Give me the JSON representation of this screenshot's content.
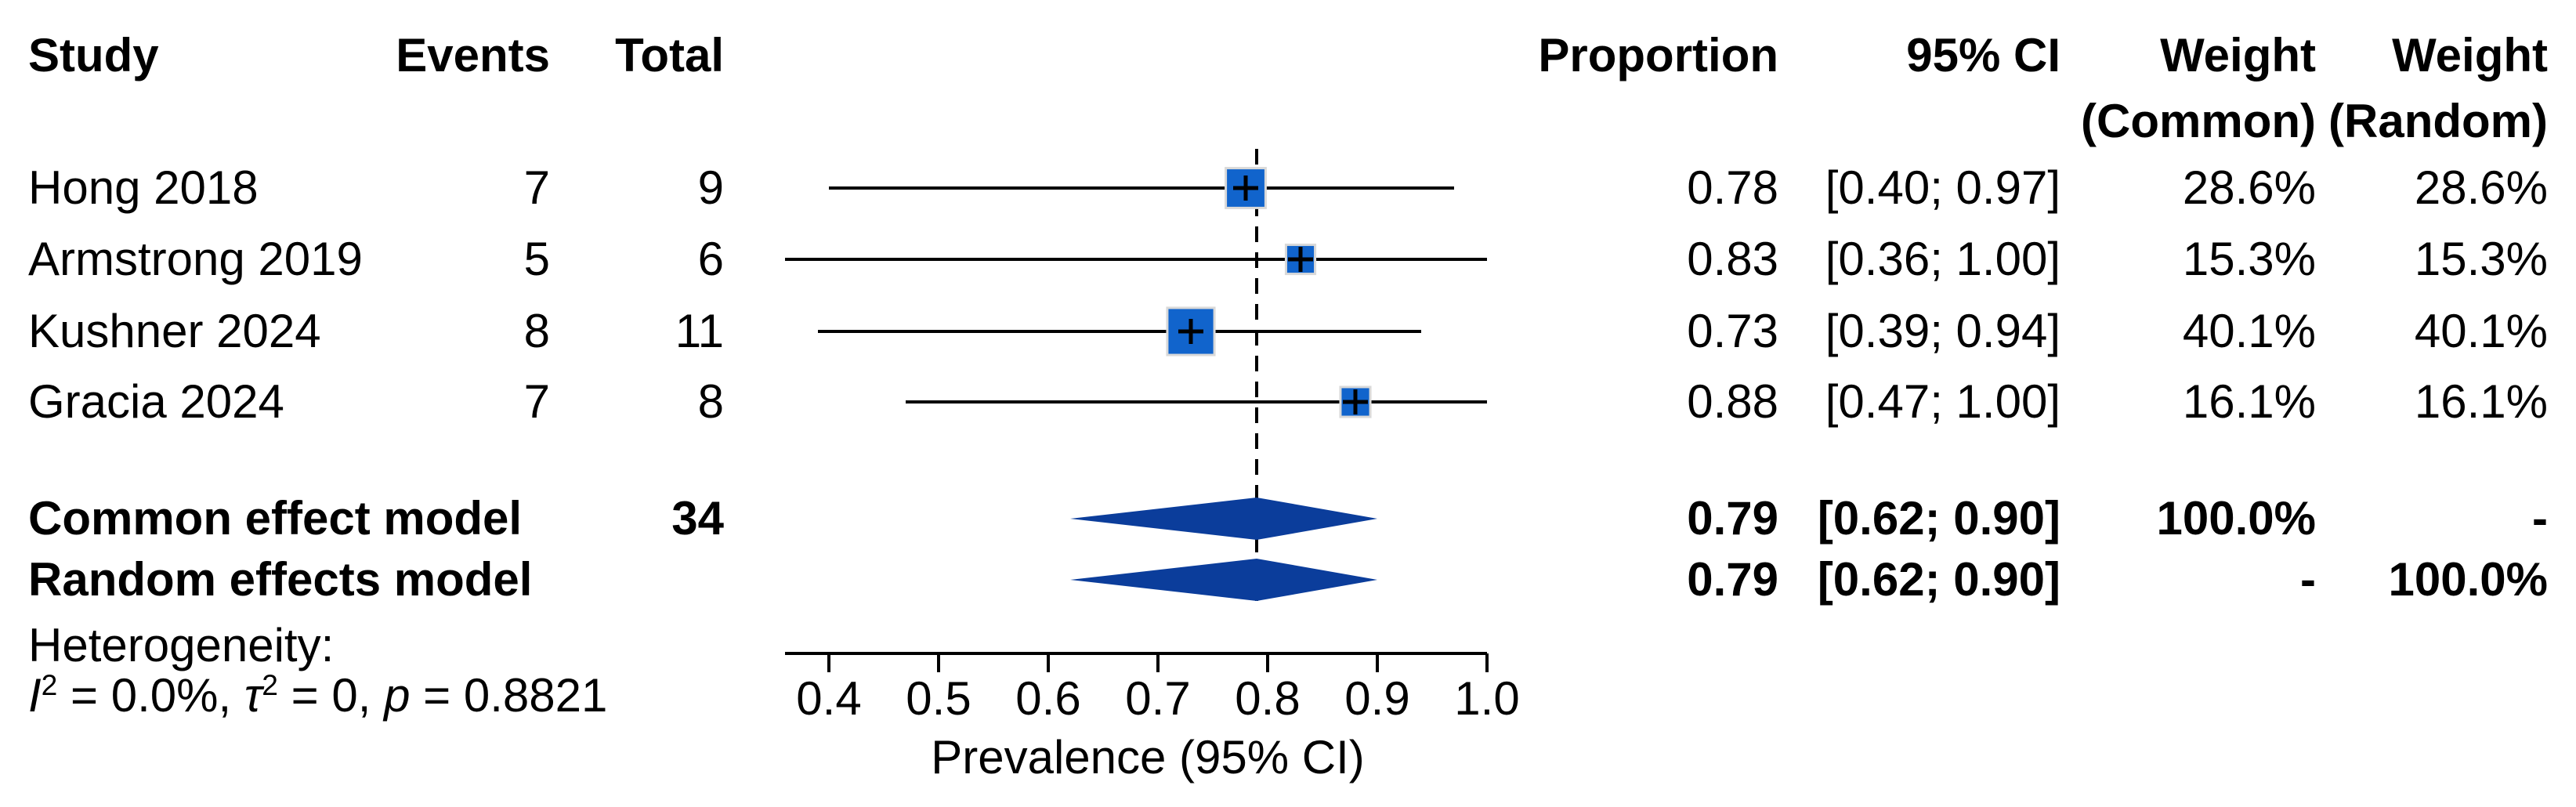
{
  "table": {
    "headers": {
      "study": "Study",
      "events": "Events",
      "total": "Total",
      "proportion": "Proportion",
      "ci": "95% CI",
      "weight_common_line1": "Weight",
      "weight_common_line2": "(Common)",
      "weight_random_line1": "Weight",
      "weight_random_line2": "(Random)"
    },
    "rows": [
      {
        "study": "Hong 2018",
        "events": "7",
        "total": "9",
        "proportion": "0.78",
        "ci": "[0.40; 0.97]",
        "wc": "28.6%",
        "wr": "28.6%"
      },
      {
        "study": "Armstrong 2019",
        "events": "5",
        "total": "6",
        "proportion": "0.83",
        "ci": "[0.36; 1.00]",
        "wc": "15.3%",
        "wr": "15.3%"
      },
      {
        "study": "Kushner 2024",
        "events": "8",
        "total": "11",
        "proportion": "0.73",
        "ci": "[0.39; 0.94]",
        "wc": "40.1%",
        "wr": "40.1%"
      },
      {
        "study": "Gracia 2024",
        "events": "7",
        "total": "8",
        "proportion": "0.88",
        "ci": "[0.47; 1.00]",
        "wc": "16.1%",
        "wr": "16.1%"
      }
    ],
    "models": [
      {
        "label": "Common effect model",
        "total": "34",
        "proportion": "0.79",
        "ci": "[0.62; 0.90]",
        "wc": "100.0%",
        "wr": "-"
      },
      {
        "label": "Random effects model",
        "total": "",
        "proportion": "0.79",
        "ci": "[0.62; 0.90]",
        "wc": "-",
        "wr": "100.0%"
      }
    ]
  },
  "heterogeneity": {
    "title": "Heterogeneity:",
    "stats_text": "I² = 0.0%, τ² = 0, p = 0.8821",
    "parts": [
      {
        "text": "I",
        "style": "italic"
      },
      {
        "text": "2",
        "style": "sup"
      },
      {
        "text": " = 0.0%, ",
        "style": ""
      },
      {
        "text": "τ",
        "style": "italic"
      },
      {
        "text": "2",
        "style": "sup"
      },
      {
        "text": " = 0, ",
        "style": ""
      },
      {
        "text": "p",
        "style": "italic"
      },
      {
        "text": " = 0.8821",
        "style": ""
      }
    ]
  },
  "colors": {
    "square": "#1164CC",
    "square_border": "#d9d9d9",
    "diamond": "#0B3D9B",
    "line": "#000000"
  },
  "chart_data": {
    "type": "scatter",
    "variant": "forest-plot-meta-analysis",
    "title": "",
    "xlabel": "Prevalence (95% CI)",
    "ylabel": "",
    "xlim": [
      0.36,
      1.0
    ],
    "grid": false,
    "axis": {
      "ticks": [
        0.4,
        0.5,
        0.6,
        0.7,
        0.8,
        0.9,
        1.0
      ],
      "tick_labels": [
        "0.4",
        "0.5",
        "0.6",
        "0.7",
        "0.8",
        "0.9",
        "1.0"
      ]
    },
    "reference_line": 0.79,
    "studies": [
      {
        "name": "Hong 2018",
        "events": 7,
        "total": 9,
        "proportion": 0.78,
        "ci_low": 0.4,
        "ci_high": 0.97,
        "weight_common": 28.6,
        "weight_random": 28.6
      },
      {
        "name": "Armstrong 2019",
        "events": 5,
        "total": 6,
        "proportion": 0.83,
        "ci_low": 0.36,
        "ci_high": 1.0,
        "weight_common": 15.3,
        "weight_random": 15.3
      },
      {
        "name": "Kushner 2024",
        "events": 8,
        "total": 11,
        "proportion": 0.73,
        "ci_low": 0.39,
        "ci_high": 0.94,
        "weight_common": 40.1,
        "weight_random": 40.1
      },
      {
        "name": "Gracia 2024",
        "events": 7,
        "total": 8,
        "proportion": 0.88,
        "ci_low": 0.47,
        "ci_high": 1.0,
        "weight_common": 16.1,
        "weight_random": 16.1
      }
    ],
    "summaries": [
      {
        "name": "Common effect model",
        "total": 34,
        "proportion": 0.79,
        "ci_low": 0.62,
        "ci_high": 0.9,
        "weight_common": 100.0,
        "weight_random": null
      },
      {
        "name": "Random effects model",
        "total": null,
        "proportion": 0.79,
        "ci_low": 0.62,
        "ci_high": 0.9,
        "weight_common": null,
        "weight_random": 100.0
      }
    ],
    "heterogeneity_text": "I² = 0.0%, τ² = 0, p = 0.8821"
  }
}
